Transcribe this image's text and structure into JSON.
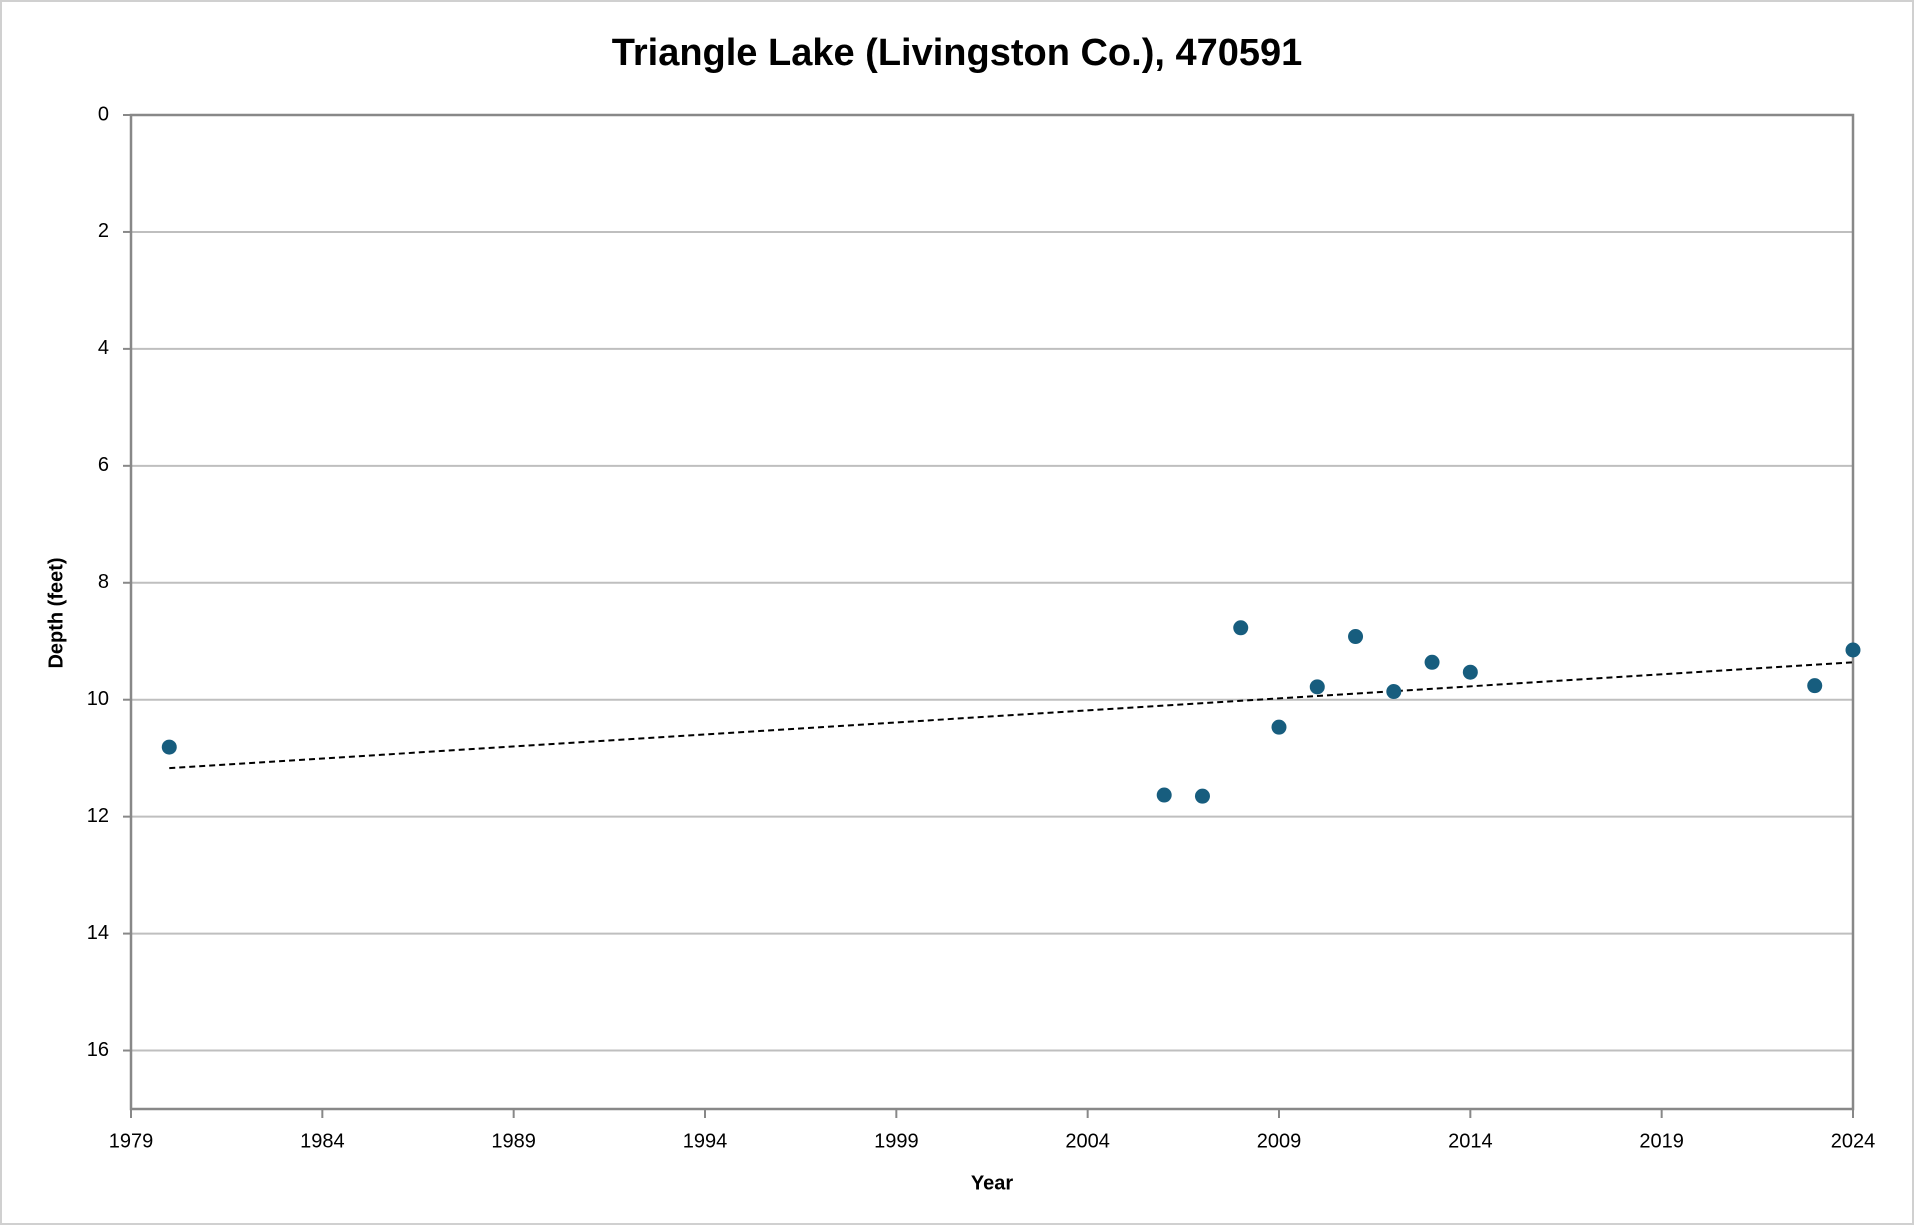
{
  "chart_data": {
    "type": "scatter",
    "title": "Triangle Lake (Livingston Co.), 470591",
    "x_label": "Year",
    "y_label": "Depth (feet)",
    "x": [
      1980,
      2006,
      2007,
      2008,
      2009,
      2010,
      2011,
      2012,
      2013,
      2014,
      2023,
      2024
    ],
    "series": [
      {
        "color": "#175d7e",
        "values": [
          10.81,
          11.63,
          11.65,
          8.77,
          10.47,
          9.78,
          8.92,
          9.86,
          9.36,
          9.53,
          9.76,
          9.15
        ]
      }
    ],
    "trendline": {
      "x": [
        1980,
        2024
      ],
      "values": [
        11.17,
        9.36
      ],
      "color": "#000000"
    },
    "xlim": [
      1979,
      2024
    ],
    "xticks": [
      1979,
      1984,
      1989,
      1994,
      1999,
      2004,
      2009,
      2014,
      2019,
      2024
    ],
    "ylim": [
      0,
      17
    ],
    "yticks": [
      0,
      2,
      4,
      6,
      8,
      10,
      12,
      14,
      16
    ],
    "y_inverted": true,
    "grid": true
  }
}
